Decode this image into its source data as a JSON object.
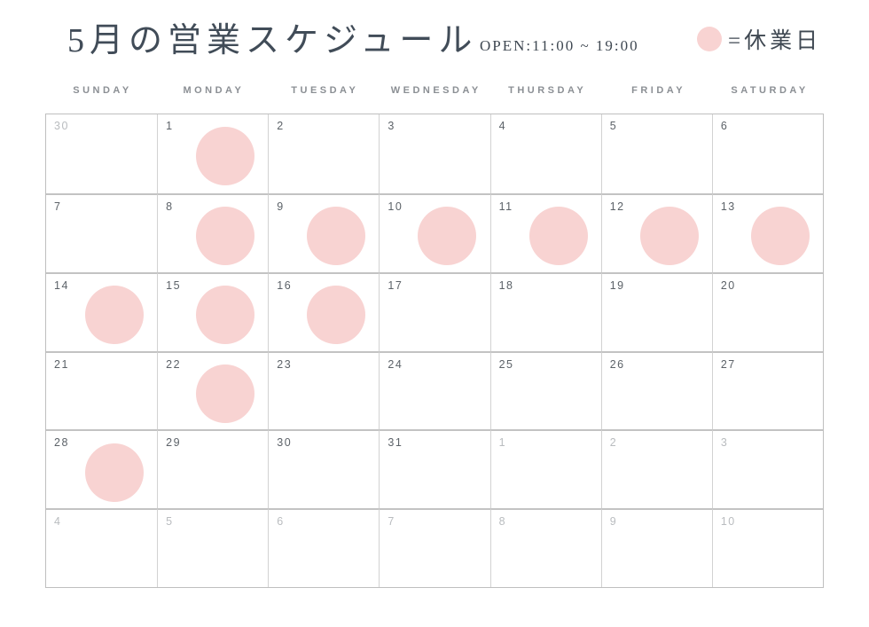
{
  "header": {
    "title": "5月の営業スケジュール",
    "open_hours": "OPEN:11:00 ~ 19:00",
    "legend_label": "=休業日"
  },
  "colors": {
    "closed_day_pink": "#f8d3d2",
    "title_text": "#414c58",
    "grid_line": "#c3c3c3",
    "day_number": "#5c6268",
    "muted_day_number": "#b9bcbf"
  },
  "calendar": {
    "weekdays": [
      "SUNDAY",
      "MONDAY",
      "TUESDAY",
      "WEDNESDAY",
      "THURSDAY",
      "FRIDAY",
      "SATURDAY"
    ],
    "weeks": [
      [
        {
          "day": "30",
          "muted": true,
          "closed": false
        },
        {
          "day": "1",
          "muted": false,
          "closed": true
        },
        {
          "day": "2",
          "muted": false,
          "closed": false
        },
        {
          "day": "3",
          "muted": false,
          "closed": false
        },
        {
          "day": "4",
          "muted": false,
          "closed": false
        },
        {
          "day": "5",
          "muted": false,
          "closed": false
        },
        {
          "day": "6",
          "muted": false,
          "closed": false
        }
      ],
      [
        {
          "day": "7",
          "muted": false,
          "closed": false
        },
        {
          "day": "8",
          "muted": false,
          "closed": true
        },
        {
          "day": "9",
          "muted": false,
          "closed": true
        },
        {
          "day": "10",
          "muted": false,
          "closed": true
        },
        {
          "day": "11",
          "muted": false,
          "closed": true
        },
        {
          "day": "12",
          "muted": false,
          "closed": true
        },
        {
          "day": "13",
          "muted": false,
          "closed": true
        }
      ],
      [
        {
          "day": "14",
          "muted": false,
          "closed": true
        },
        {
          "day": "15",
          "muted": false,
          "closed": true
        },
        {
          "day": "16",
          "muted": false,
          "closed": true
        },
        {
          "day": "17",
          "muted": false,
          "closed": false
        },
        {
          "day": "18",
          "muted": false,
          "closed": false
        },
        {
          "day": "19",
          "muted": false,
          "closed": false
        },
        {
          "day": "20",
          "muted": false,
          "closed": false
        }
      ],
      [
        {
          "day": "21",
          "muted": false,
          "closed": false
        },
        {
          "day": "22",
          "muted": false,
          "closed": true
        },
        {
          "day": "23",
          "muted": false,
          "closed": false
        },
        {
          "day": "24",
          "muted": false,
          "closed": false
        },
        {
          "day": "25",
          "muted": false,
          "closed": false
        },
        {
          "day": "26",
          "muted": false,
          "closed": false
        },
        {
          "day": "27",
          "muted": false,
          "closed": false
        }
      ],
      [
        {
          "day": "28",
          "muted": false,
          "closed": true
        },
        {
          "day": "29",
          "muted": false,
          "closed": false
        },
        {
          "day": "30",
          "muted": false,
          "closed": false
        },
        {
          "day": "31",
          "muted": false,
          "closed": false
        },
        {
          "day": "1",
          "muted": true,
          "closed": false
        },
        {
          "day": "2",
          "muted": true,
          "closed": false
        },
        {
          "day": "3",
          "muted": true,
          "closed": false
        }
      ],
      [
        {
          "day": "4",
          "muted": true,
          "closed": false
        },
        {
          "day": "5",
          "muted": true,
          "closed": false
        },
        {
          "day": "6",
          "muted": true,
          "closed": false
        },
        {
          "day": "7",
          "muted": true,
          "closed": false
        },
        {
          "day": "8",
          "muted": true,
          "closed": false
        },
        {
          "day": "9",
          "muted": true,
          "closed": false
        },
        {
          "day": "10",
          "muted": true,
          "closed": false
        }
      ]
    ]
  }
}
